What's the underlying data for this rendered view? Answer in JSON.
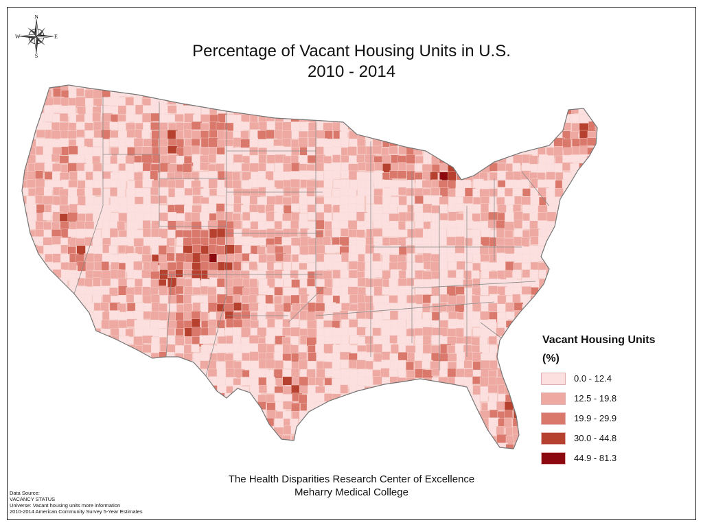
{
  "title": {
    "line1": "Percentage of Vacant Housing Units in U.S.",
    "line2": "2010 - 2014"
  },
  "compass": {
    "n": "N",
    "s": "S",
    "e": "E",
    "w": "W",
    "icon": "compass-rose-icon"
  },
  "legend": {
    "title": "Vacant Housing Units",
    "unit": "(%)",
    "classes": [
      {
        "label": "0.0 - 12.4",
        "color": "#fbe0df"
      },
      {
        "label": "12.5 - 19.8",
        "color": "#eeaaa2"
      },
      {
        "label": "19.9 - 29.9",
        "color": "#d9786b"
      },
      {
        "label": "30.0 - 44.8",
        "color": "#b7412f"
      },
      {
        "label": "44.9 - 81.3",
        "color": "#8c0a0f"
      }
    ]
  },
  "credit": {
    "line1": "The Health Disparities Research Center of Excellence",
    "line2": "Meharry Medical College"
  },
  "source": {
    "line1": "Data Source:",
    "line2": "VACANCY STATUS",
    "line3": "Universe: Vacant housing units  more information",
    "line4": "2010-2014 American Community Survey 5-Year Estimates"
  },
  "colors": {
    "border": "#777777",
    "background": "#ffffff"
  }
}
